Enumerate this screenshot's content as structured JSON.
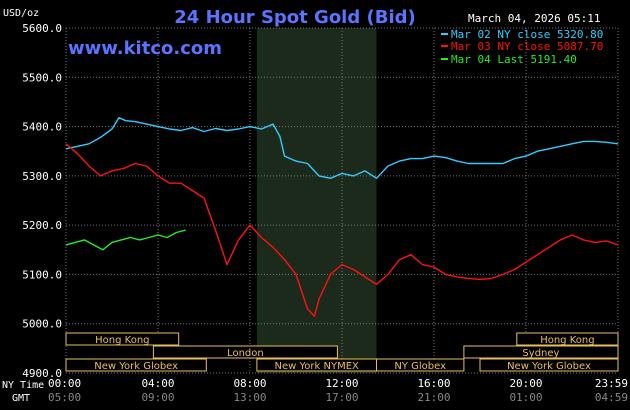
{
  "header": {
    "title": "24 Hour Spot Gold (Bid)",
    "site": "www.kitco.com",
    "datetime": "March 04, 2026 05:11",
    "unit": "USD/oz"
  },
  "legend": [
    {
      "text": "Mar 02 NY close 5320.80",
      "color": "#33ccff"
    },
    {
      "text": "Mar 03 NY close 5087.70",
      "color": "#ff1111"
    },
    {
      "text": "Mar 04 Last 5191.40",
      "color": "#22ee22"
    }
  ],
  "axis_labels": {
    "nytime": "NY Time",
    "gmt": "GMT"
  },
  "chart_data": {
    "type": "line",
    "title": "24 Hour Spot Gold (Bid)",
    "ylabel": "USD/oz",
    "ylim": [
      4900,
      5600
    ],
    "xlim": [
      0,
      24
    ],
    "y_ticks": [
      {
        "value": 5600,
        "label": "5600.0"
      },
      {
        "value": 5500,
        "label": "5500.0"
      },
      {
        "value": 5400,
        "label": "5400.0"
      },
      {
        "value": 5300,
        "label": "5300.0"
      },
      {
        "value": 5200,
        "label": "5200.0"
      },
      {
        "value": 5100,
        "label": "5100.0"
      },
      {
        "value": 5000,
        "label": "5000.0"
      },
      {
        "value": 4900,
        "label": "4900.0"
      }
    ],
    "x_ticks": [
      {
        "hour": 0,
        "ny": "00:00",
        "gmt": "05:00"
      },
      {
        "hour": 4,
        "ny": "04:00",
        "gmt": "09:00"
      },
      {
        "hour": 8,
        "ny": "08:00",
        "gmt": "13:00"
      },
      {
        "hour": 12,
        "ny": "12:00",
        "gmt": "17:00"
      },
      {
        "hour": 16,
        "ny": "16:00",
        "gmt": "21:00"
      },
      {
        "hour": 20,
        "ny": "20:00",
        "gmt": "01:00"
      },
      {
        "hour": 24,
        "ny": "23:59",
        "gmt": "04:59"
      }
    ],
    "highlight_hours": [
      8.3,
      13.5
    ],
    "sessions": [
      {
        "label": "Hong Kong",
        "start": 0,
        "end": 4.9,
        "row": 0
      },
      {
        "label": "Hong Kong",
        "start": 19.6,
        "end": 24,
        "row": 0
      },
      {
        "label": "London",
        "start": 3.8,
        "end": 11.8,
        "row": 1
      },
      {
        "label": "Sydney",
        "start": 17.3,
        "end": 24,
        "row": 1
      },
      {
        "label": "New York Globex",
        "start": 0,
        "end": 6.1,
        "row": 2
      },
      {
        "label": "New York NYMEX",
        "start": 8.3,
        "end": 13.5,
        "row": 2
      },
      {
        "label": "NY Globex",
        "start": 13.5,
        "end": 17.3,
        "row": 2
      },
      {
        "label": "New York Globex",
        "start": 18,
        "end": 24,
        "row": 2
      }
    ],
    "series": [
      {
        "name": "Mar 02 NY close 5320.80",
        "color": "#33ccff",
        "x": [
          0,
          0.5,
          1,
          1.5,
          2,
          2.3,
          2.6,
          3,
          3.5,
          4,
          4.5,
          5,
          5.5,
          6,
          6.5,
          7,
          7.5,
          8,
          8.5,
          9,
          9.3,
          9.5,
          10,
          10.5,
          11,
          11.5,
          12,
          12.5,
          13,
          13.5,
          14,
          14.5,
          15,
          15.5,
          16,
          16.5,
          17,
          17.5,
          18,
          18.5,
          19,
          19.5,
          20,
          20.5,
          21,
          21.5,
          22,
          22.5,
          23,
          23.5,
          24
        ],
        "y": [
          5355,
          5360,
          5365,
          5378,
          5395,
          5418,
          5412,
          5410,
          5405,
          5400,
          5395,
          5392,
          5398,
          5390,
          5396,
          5392,
          5395,
          5400,
          5395,
          5405,
          5380,
          5340,
          5330,
          5325,
          5300,
          5295,
          5305,
          5300,
          5310,
          5295,
          5320,
          5330,
          5335,
          5335,
          5340,
          5337,
          5330,
          5325,
          5325,
          5325,
          5325,
          5335,
          5340,
          5350,
          5355,
          5360,
          5365,
          5370,
          5370,
          5368,
          5365
        ]
      },
      {
        "name": "Mar 03 NY close 5087.70",
        "color": "#ff1111",
        "x": [
          0,
          0.5,
          1,
          1.5,
          2,
          2.5,
          3,
          3.5,
          4,
          4.5,
          5,
          5.5,
          6,
          6.5,
          7,
          7.5,
          8,
          8.5,
          9,
          9.5,
          10,
          10.5,
          10.8,
          11,
          11.5,
          12,
          12.5,
          13,
          13.5,
          14,
          14.5,
          15,
          15.5,
          16,
          16.5,
          17,
          17.5,
          18,
          18.5,
          19,
          19.5,
          20,
          20.5,
          21,
          21.5,
          22,
          22.5,
          23,
          23.5,
          24
        ],
        "y": [
          5365,
          5345,
          5320,
          5300,
          5310,
          5315,
          5325,
          5320,
          5300,
          5285,
          5285,
          5270,
          5255,
          5190,
          5120,
          5170,
          5200,
          5175,
          5155,
          5130,
          5100,
          5030,
          5015,
          5050,
          5100,
          5120,
          5110,
          5095,
          5080,
          5100,
          5130,
          5140,
          5120,
          5115,
          5100,
          5095,
          5092,
          5090,
          5092,
          5100,
          5110,
          5125,
          5140,
          5155,
          5170,
          5180,
          5170,
          5165,
          5168,
          5160
        ]
      },
      {
        "name": "Mar 04 Last 5191.40",
        "color": "#22ee22",
        "x": [
          0,
          0.4,
          0.8,
          1.2,
          1.6,
          2,
          2.4,
          2.8,
          3.2,
          3.6,
          4,
          4.4,
          4.8,
          5.2
        ],
        "y": [
          5160,
          5165,
          5170,
          5160,
          5150,
          5165,
          5170,
          5175,
          5170,
          5175,
          5180,
          5175,
          5185,
          5190
        ]
      }
    ]
  }
}
